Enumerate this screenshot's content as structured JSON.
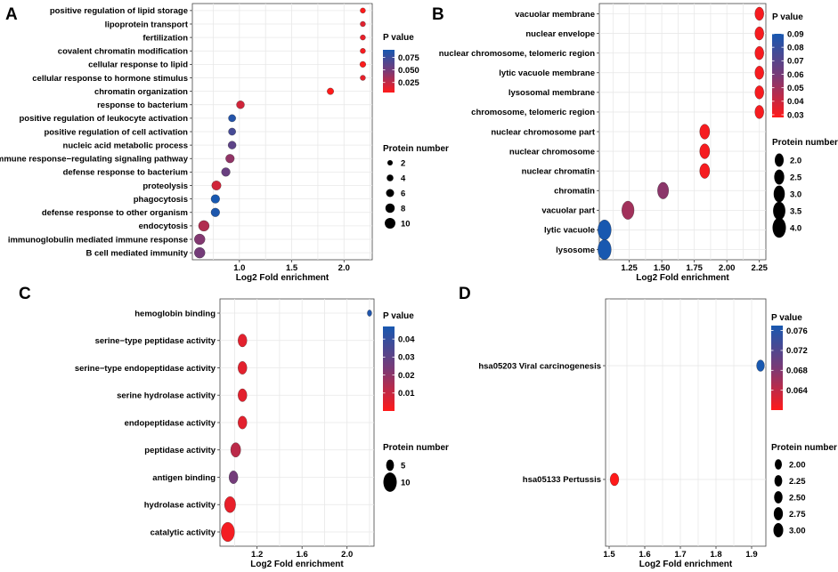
{
  "chart_data": [
    {
      "panel": "A",
      "type": "scatter",
      "xlabel": "Log2 Fold enrichment",
      "xlim": [
        0.55,
        2.27
      ],
      "xticks": [
        1.0,
        1.5,
        2.0
      ],
      "xtick_labels": [
        "1.0",
        "1.5",
        "2.0"
      ],
      "categories": [
        "positive regulation of lipid storage",
        "lipoprotein transport",
        "fertilization",
        "covalent chromatin modification",
        "cellular response to lipid",
        "cellular response to hormone stimulus",
        "chromatin organization",
        "response to bacterium",
        "positive regulation of leukocyte activation",
        "positive regulation of cell activation",
        "nucleic acid metabolic process",
        "immune response−regulating signaling pathway",
        "defense response to bacterium",
        "proteolysis",
        "phagocytosis",
        "defense response to other organism",
        "endocytosis",
        "immunoglobulin mediated immune response",
        "B cell mediated immunity"
      ],
      "x": [
        2.18,
        2.18,
        2.18,
        2.18,
        2.18,
        2.18,
        1.87,
        1.01,
        0.93,
        0.93,
        0.93,
        0.91,
        0.87,
        0.78,
        0.77,
        0.77,
        0.66,
        0.62,
        0.62
      ],
      "p_value": [
        0.005,
        0.015,
        0.012,
        0.008,
        0.006,
        0.013,
        0.004,
        0.02,
        0.085,
        0.07,
        0.06,
        0.04,
        0.055,
        0.02,
        0.09,
        0.088,
        0.03,
        0.045,
        0.05
      ],
      "protein_number": [
        2,
        2,
        2,
        2,
        3,
        2,
        4,
        6,
        5,
        5,
        6,
        7,
        7,
        8,
        7,
        7,
        10,
        10,
        10
      ],
      "p_legend": {
        "title": "P value",
        "range": [
          0.005,
          0.09
        ],
        "ticks": [
          0.025,
          0.05,
          0.075
        ],
        "tick_labels": [
          "0.025",
          "0.050",
          "0.075"
        ]
      },
      "size_legend": {
        "title": "Protein number",
        "values": [
          2,
          4,
          6,
          8,
          10
        ],
        "labels": [
          "2",
          "4",
          "6",
          "8",
          "10"
        ],
        "range": [
          2,
          10
        ]
      }
    },
    {
      "panel": "B",
      "type": "scatter",
      "xlabel": "Log2 Fold enrichment",
      "xlim": [
        1.02,
        2.3
      ],
      "xticks": [
        1.25,
        1.5,
        1.75,
        2.0,
        2.25
      ],
      "xtick_labels": [
        "1.25",
        "1.50",
        "1.75",
        "2.00",
        "2.25"
      ],
      "categories": [
        "vacuolar membrane",
        "nuclear envelope",
        "nuclear chromosome, telomeric region",
        "lytic vacuole membrane",
        "lysosomal membrane",
        "chromosome, telomeric region",
        "nuclear chromosome part",
        "nuclear chromosome",
        "nuclear chromatin",
        "chromatin",
        "vacuolar part",
        "lytic vacuole",
        "lysosome"
      ],
      "x": [
        2.25,
        2.25,
        2.25,
        2.25,
        2.25,
        2.25,
        1.83,
        1.83,
        1.83,
        1.51,
        1.24,
        1.06,
        1.06
      ],
      "p_value": [
        0.03,
        0.03,
        0.03,
        0.03,
        0.03,
        0.03,
        0.03,
        0.03,
        0.03,
        0.055,
        0.05,
        0.09,
        0.09
      ],
      "protein_number": [
        2,
        2,
        2,
        2,
        2,
        2,
        2.5,
        2.5,
        2.5,
        3,
        3.5,
        4,
        4
      ],
      "p_legend": {
        "title": "P value",
        "range": [
          0.028,
          0.09
        ],
        "ticks": [
          0.03,
          0.04,
          0.05,
          0.06,
          0.07,
          0.08,
          0.09
        ],
        "tick_labels": [
          "0.03",
          "0.04",
          "0.05",
          "0.06",
          "0.07",
          "0.08",
          "0.09"
        ]
      },
      "size_legend": {
        "title": "Protein number",
        "values": [
          2.0,
          2.5,
          3.0,
          3.5,
          4.0
        ],
        "labels": [
          "2.0",
          "2.5",
          "3.0",
          "3.5",
          "4.0"
        ],
        "range": [
          2,
          4
        ]
      }
    },
    {
      "panel": "C",
      "type": "scatter",
      "xlabel": "Log2 Fold enrichment",
      "xlim": [
        0.87,
        2.24
      ],
      "xticks": [
        1.2,
        1.6,
        2.0
      ],
      "xtick_labels": [
        "1.2",
        "1.6",
        "2.0"
      ],
      "categories": [
        "hemoglobin binding",
        "serine−type peptidase activity",
        "serine−type endopeptidase activity",
        "serine hydrolase activity",
        "endopeptidase activity",
        "peptidase activity",
        "antigen binding",
        "hydrolase activity",
        "catalytic activity"
      ],
      "x": [
        2.2,
        1.07,
        1.07,
        1.07,
        1.07,
        1.01,
        0.99,
        0.96,
        0.94
      ],
      "p_value": [
        0.045,
        0.005,
        0.005,
        0.005,
        0.005,
        0.012,
        0.025,
        0.004,
        0.002
      ],
      "protein_number": [
        2,
        6,
        6,
        6,
        6,
        7,
        6,
        8,
        10
      ],
      "p_legend": {
        "title": "P value",
        "range": [
          0.0,
          0.047
        ],
        "ticks": [
          0.01,
          0.02,
          0.03,
          0.04
        ],
        "tick_labels": [
          "0.01",
          "0.02",
          "0.03",
          "0.04"
        ]
      },
      "size_legend": {
        "title": "Protein number",
        "values": [
          5,
          10
        ],
        "labels": [
          "5",
          "10"
        ],
        "range": [
          2,
          10
        ]
      }
    },
    {
      "panel": "D",
      "type": "scatter",
      "xlabel": "Log2 Fold enrichment",
      "xlim": [
        1.49,
        1.94
      ],
      "xticks": [
        1.5,
        1.6,
        1.7,
        1.8,
        1.9
      ],
      "xtick_labels": [
        "1.5",
        "1.6",
        "1.7",
        "1.8",
        "1.9"
      ],
      "categories": [
        "hsa05203 Viral carcinogenesis",
        "hsa05133 Pertussis"
      ],
      "x": [
        1.925,
        1.515
      ],
      "p_value": [
        0.077,
        0.06
      ],
      "protein_number": [
        2.3,
        2.6
      ],
      "p_legend": {
        "title": "P value",
        "range": [
          0.06,
          0.077
        ],
        "ticks": [
          0.064,
          0.068,
          0.072,
          0.076
        ],
        "tick_labels": [
          "0.064",
          "0.068",
          "0.072",
          "0.076"
        ]
      },
      "size_legend": {
        "title": "Protein number",
        "values": [
          2.0,
          2.25,
          2.5,
          2.75,
          3.0
        ],
        "labels": [
          "2.00",
          "2.25",
          "2.50",
          "2.75",
          "3.00"
        ],
        "range": [
          2,
          3
        ]
      }
    }
  ],
  "colors": {
    "low": "#ff1a1a",
    "mid": "#7a3a76",
    "high": "#1858b0",
    "grid": "#e8e8e8",
    "border": "#444444"
  }
}
